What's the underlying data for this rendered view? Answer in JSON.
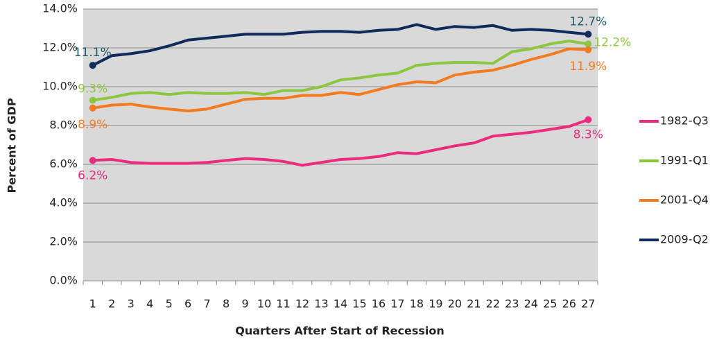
{
  "chart_data": {
    "type": "line",
    "x_label": "Quarters After Start of Recession",
    "y_label": "Percent of GDP",
    "categories": [
      "1",
      "2",
      "3",
      "4",
      "5",
      "6",
      "7",
      "8",
      "9",
      "10",
      "11",
      "12",
      "13",
      "14",
      "15",
      "16",
      "17",
      "18",
      "19",
      "20",
      "21",
      "22",
      "23",
      "24",
      "25",
      "26",
      "27"
    ],
    "ylim": [
      0,
      14
    ],
    "yticks": [
      {
        "value": 0,
        "label": "0.0%"
      },
      {
        "value": 2,
        "label": "2.0%"
      },
      {
        "value": 4,
        "label": "4.0%"
      },
      {
        "value": 6,
        "label": "6.0%"
      },
      {
        "value": 8,
        "label": "8.0%"
      },
      {
        "value": 10,
        "label": "10.0%"
      },
      {
        "value": 12,
        "label": "12.0%"
      },
      {
        "value": 14,
        "label": "14.0%"
      }
    ],
    "grid": true,
    "legend": "right",
    "series": [
      {
        "name": "1982-Q3",
        "color": "#ec2a7e",
        "values": [
          6.2,
          6.25,
          6.1,
          6.05,
          6.05,
          6.05,
          6.1,
          6.2,
          6.3,
          6.25,
          6.15,
          5.95,
          6.1,
          6.25,
          6.3,
          6.4,
          6.6,
          6.55,
          6.75,
          6.95,
          7.1,
          7.45,
          7.55,
          7.65,
          7.8,
          7.95,
          8.3
        ],
        "value_labels": [
          "6.2%",
          null,
          null,
          null,
          null,
          null,
          null,
          null,
          null,
          null,
          null,
          null,
          null,
          null,
          null,
          null,
          null,
          null,
          null,
          null,
          null,
          null,
          null,
          null,
          null,
          null,
          "8.3%"
        ]
      },
      {
        "name": "1991-Q1",
        "color": "#8dc63f",
        "values": [
          9.3,
          9.45,
          9.65,
          9.7,
          9.6,
          9.7,
          9.65,
          9.65,
          9.7,
          9.6,
          9.8,
          9.8,
          10.0,
          10.35,
          10.45,
          10.6,
          10.7,
          11.1,
          11.2,
          11.25,
          11.25,
          11.2,
          11.8,
          11.95,
          12.2,
          12.35,
          12.2
        ],
        "value_labels": [
          "9.3%",
          null,
          null,
          null,
          null,
          null,
          null,
          null,
          null,
          null,
          null,
          null,
          null,
          null,
          null,
          null,
          null,
          null,
          null,
          null,
          null,
          null,
          null,
          null,
          null,
          null,
          "12.2%"
        ]
      },
      {
        "name": "2001-Q4",
        "color": "#f47b20",
        "values": [
          8.9,
          9.05,
          9.1,
          8.95,
          8.85,
          8.75,
          8.85,
          9.1,
          9.35,
          9.4,
          9.4,
          9.55,
          9.55,
          9.7,
          9.6,
          9.85,
          10.1,
          10.25,
          10.2,
          10.6,
          10.75,
          10.85,
          11.1,
          11.4,
          11.65,
          11.95,
          11.9
        ],
        "value_labels": [
          "8.9%",
          null,
          null,
          null,
          null,
          null,
          null,
          null,
          null,
          null,
          null,
          null,
          null,
          null,
          null,
          null,
          null,
          null,
          null,
          null,
          null,
          null,
          null,
          null,
          null,
          null,
          "11.9%"
        ]
      },
      {
        "name": "2009-Q2",
        "color": "#102a5c",
        "values": [
          11.1,
          11.6,
          11.7,
          11.85,
          12.1,
          12.4,
          12.5,
          12.6,
          12.7,
          12.7,
          12.7,
          12.8,
          12.85,
          12.85,
          12.8,
          12.9,
          12.95,
          13.2,
          12.95,
          13.1,
          13.05,
          13.15,
          12.9,
          12.95,
          12.9,
          12.8,
          12.7
        ],
        "value_labels": [
          "11.1%",
          null,
          null,
          null,
          null,
          null,
          null,
          null,
          null,
          null,
          null,
          null,
          null,
          null,
          null,
          null,
          null,
          null,
          null,
          null,
          null,
          null,
          null,
          null,
          null,
          null,
          "12.7%"
        ]
      }
    ]
  }
}
